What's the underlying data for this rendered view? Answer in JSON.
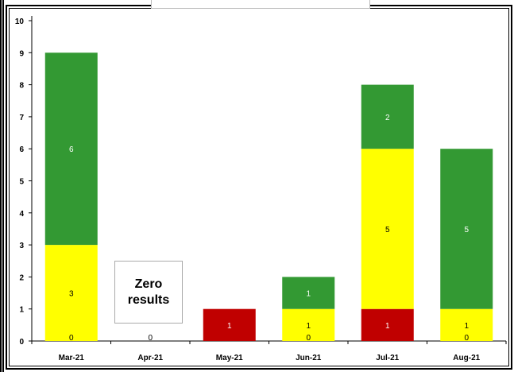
{
  "chart_data": {
    "type": "bar",
    "stacked": true,
    "title": "",
    "xlabel": "",
    "ylabel": "",
    "ylim": [
      0,
      10
    ],
    "yticks": [
      0,
      1,
      2,
      3,
      4,
      5,
      6,
      7,
      8,
      9,
      10
    ],
    "categories": [
      "Mar-21",
      "Apr-21",
      "May-21",
      "Jun-21",
      "Jul-21",
      "Aug-21"
    ],
    "series": [
      {
        "color": "#c00000",
        "label_color": "#ffffff",
        "values": [
          0,
          0,
          1,
          0,
          1,
          0
        ]
      },
      {
        "color": "#ffff00",
        "label_color": "#000000",
        "values": [
          3,
          0,
          0,
          1,
          5,
          1
        ]
      },
      {
        "color": "#339933",
        "label_color": "#ffffff",
        "values": [
          6,
          0,
          0,
          1,
          2,
          5
        ]
      }
    ],
    "bottom_labels": [
      "0",
      "0",
      "",
      "0",
      "",
      "0"
    ],
    "annotation": {
      "text": "Zero\nresults"
    },
    "grid": false,
    "legend": "none"
  }
}
